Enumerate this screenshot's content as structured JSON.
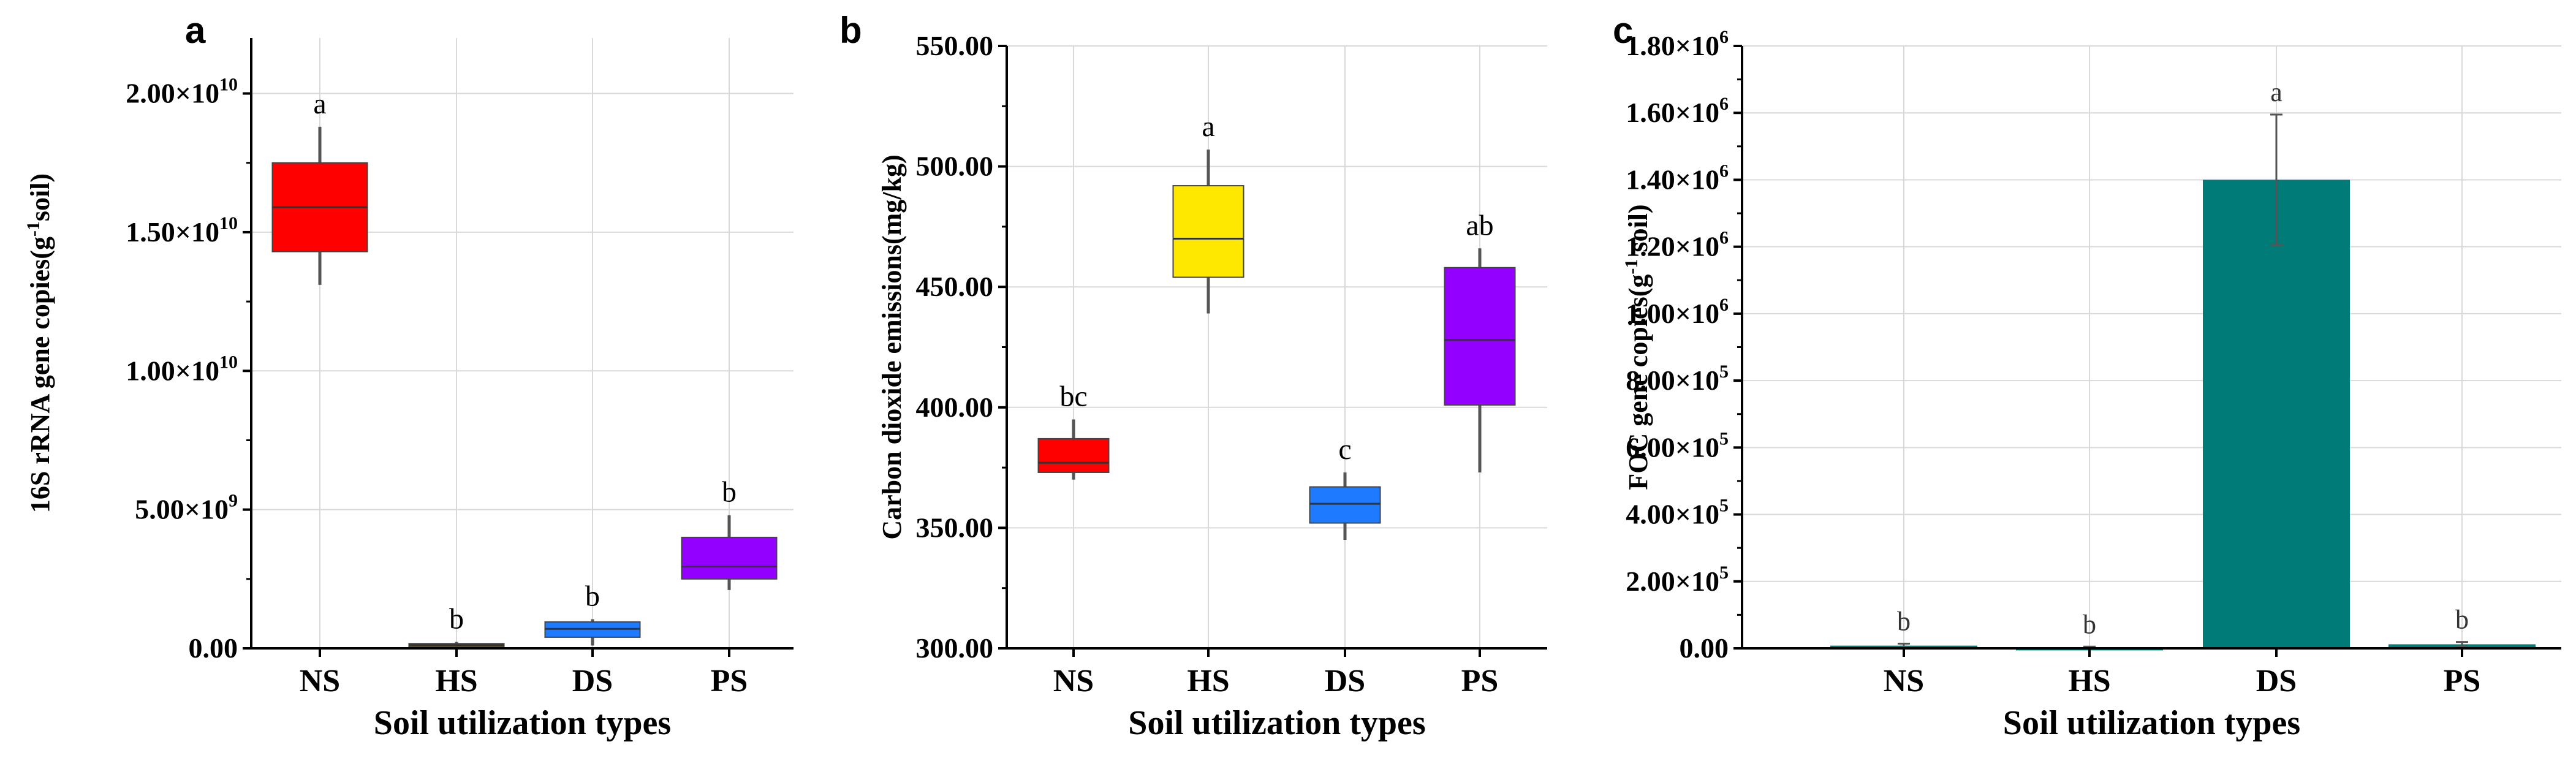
{
  "chart_data": [
    {
      "type": "box",
      "panel_label": "a",
      "xlabel": "Soil utilization types",
      "ylabel": "16S rRNA gene copies(g",
      "ylabel_sup": "-1",
      "ylabel_tail": "soil)",
      "categories": [
        "NS",
        "HS",
        "DS",
        "PS"
      ],
      "ylim": [
        0,
        22000000000.0
      ],
      "yticks": [
        {
          "value": 0,
          "mant": "0.00",
          "exp": ""
        },
        {
          "value": 5000000000.0,
          "mant": "5.00×10",
          "exp": "9"
        },
        {
          "value": 10000000000.0,
          "mant": "1.00×10",
          "exp": "10"
        },
        {
          "value": 15000000000.0,
          "mant": "1.50×10",
          "exp": "10"
        },
        {
          "value": 20000000000.0,
          "mant": "2.00×10",
          "exp": "10"
        }
      ],
      "boxes": [
        {
          "category": "NS",
          "min": 13100000000.0,
          "q1": 14300000000.0,
          "median": 15900000000.0,
          "q3": 17500000000.0,
          "max": 18800000000.0,
          "color": "#ff0000",
          "letter": "a"
        },
        {
          "category": "HS",
          "min": 50000000.0,
          "q1": 80000000.0,
          "median": 120000000.0,
          "q3": 170000000.0,
          "max": 230000000.0,
          "color": "#d4a000",
          "letter": "b"
        },
        {
          "category": "DS",
          "min": 100000000.0,
          "q1": 400000000.0,
          "median": 700000000.0,
          "q3": 950000000.0,
          "max": 1050000000.0,
          "color": "#1e7bff",
          "letter": "b"
        },
        {
          "category": "PS",
          "min": 2100000000.0,
          "q1": 2500000000.0,
          "median": 2950000000.0,
          "q3": 4000000000.0,
          "max": 4800000000.0,
          "color": "#9400ff",
          "letter": "b"
        }
      ]
    },
    {
      "type": "box",
      "panel_label": "b",
      "xlabel": "Soil utilization types",
      "ylabel": "Carbon dioxide emissions(mg/kg)",
      "categories": [
        "NS",
        "HS",
        "DS",
        "PS"
      ],
      "ylim": [
        300,
        550
      ],
      "yticks": [
        {
          "value": 300,
          "mant": "300.00",
          "exp": ""
        },
        {
          "value": 350,
          "mant": "350.00",
          "exp": ""
        },
        {
          "value": 400,
          "mant": "400.00",
          "exp": ""
        },
        {
          "value": 450,
          "mant": "450.00",
          "exp": ""
        },
        {
          "value": 500,
          "mant": "500.00",
          "exp": ""
        },
        {
          "value": 550,
          "mant": "550.00",
          "exp": ""
        }
      ],
      "boxes": [
        {
          "category": "NS",
          "min": 370,
          "q1": 373,
          "median": 377,
          "q3": 387,
          "max": 395,
          "color": "#ff0000",
          "letter": "bc"
        },
        {
          "category": "HS",
          "min": 439,
          "q1": 454,
          "median": 470,
          "q3": 492,
          "max": 507,
          "color": "#ffe800",
          "letter": "a"
        },
        {
          "category": "DS",
          "min": 345,
          "q1": 352,
          "median": 360,
          "q3": 367,
          "max": 373,
          "color": "#1e7bff",
          "letter": "c"
        },
        {
          "category": "PS",
          "min": 373,
          "q1": 401,
          "median": 428,
          "q3": 458,
          "max": 466,
          "color": "#9400ff",
          "letter": "ab"
        }
      ]
    },
    {
      "type": "bar",
      "panel_label": "c",
      "xlabel": "Soil utilization types",
      "ylabel": "FOC gene copies(g",
      "ylabel_sup": "-1",
      "ylabel_tail": " soil)",
      "categories": [
        "NS",
        "HS",
        "DS",
        "PS"
      ],
      "ylim": [
        0,
        1800000.0
      ],
      "yticks": [
        {
          "value": 0,
          "mant": "0.00",
          "exp": ""
        },
        {
          "value": 200000.0,
          "mant": "2.00×10",
          "exp": "5"
        },
        {
          "value": 400000.0,
          "mant": "4.00×10",
          "exp": "5"
        },
        {
          "value": 600000.0,
          "mant": "6.00×10",
          "exp": "5"
        },
        {
          "value": 800000.0,
          "mant": "8.00×10",
          "exp": "5"
        },
        {
          "value": 1000000.0,
          "mant": "1.00×10",
          "exp": "6"
        },
        {
          "value": 1200000.0,
          "mant": "1.20×10",
          "exp": "6"
        },
        {
          "value": 1400000.0,
          "mant": "1.40×10",
          "exp": "6"
        },
        {
          "value": 1600000.0,
          "mant": "1.60×10",
          "exp": "6"
        },
        {
          "value": 1800000.0,
          "mant": "1.80×10",
          "exp": "6"
        }
      ],
      "bars": [
        {
          "category": "NS",
          "value": 8000,
          "error": 6000,
          "letter": "b"
        },
        {
          "category": "HS",
          "value": 3000,
          "error": 2000,
          "letter": "b"
        },
        {
          "category": "DS",
          "value": 1400000.0,
          "error": 195000.0,
          "letter": "a"
        },
        {
          "category": "PS",
          "value": 12000.0,
          "error": 7000,
          "letter": "b"
        }
      ],
      "bar_color": "#007b78"
    }
  ]
}
